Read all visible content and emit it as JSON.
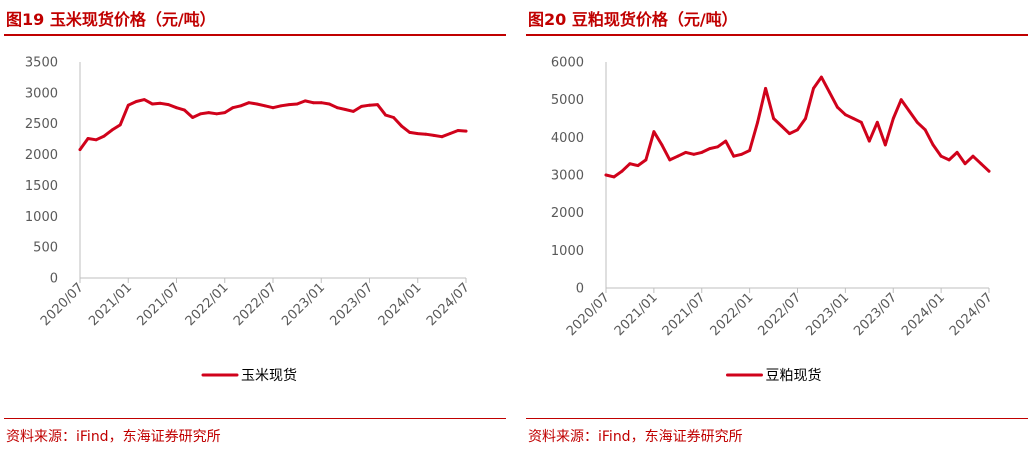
{
  "colors": {
    "accent": "#c00000",
    "series": "#d0021b",
    "axis": "#595959"
  },
  "left": {
    "title": "图19  玉米现货价格（元/吨）",
    "source": "资料来源：iFind，东海证券研究所"
  },
  "right": {
    "title": "图20  豆粕现货价格（元/吨）",
    "source": "资料来源：iFind，东海证券研究所"
  },
  "chart_data": [
    {
      "type": "line",
      "title": "图19  玉米现货价格（元/吨）",
      "xlabel": "",
      "ylabel": "",
      "ylim": [
        0,
        3500
      ],
      "yticks": [
        "0",
        "500",
        "1000",
        "1500",
        "2000",
        "2500",
        "3000",
        "3500"
      ],
      "xlim": [
        "2020-07",
        "2024-07"
      ],
      "xticks": [
        "2020/07",
        "2021/01",
        "2021/07",
        "2022/01",
        "2022/07",
        "2023/01",
        "2023/07",
        "2024/01",
        "2024/07"
      ],
      "grid": false,
      "legend": "bottom",
      "series": [
        {
          "name": "玉米现货",
          "color": "#d0021b",
          "points": [
            [
              "2020-07",
              2080
            ],
            [
              "2020-08",
              2260
            ],
            [
              "2020-09",
              2240
            ],
            [
              "2020-10",
              2300
            ],
            [
              "2020-11",
              2400
            ],
            [
              "2020-12",
              2480
            ],
            [
              "2021-01",
              2800
            ],
            [
              "2021-02",
              2860
            ],
            [
              "2021-03",
              2890
            ],
            [
              "2021-04",
              2820
            ],
            [
              "2021-05",
              2830
            ],
            [
              "2021-06",
              2810
            ],
            [
              "2021-07",
              2760
            ],
            [
              "2021-08",
              2720
            ],
            [
              "2021-09",
              2600
            ],
            [
              "2021-10",
              2660
            ],
            [
              "2021-11",
              2680
            ],
            [
              "2021-12",
              2660
            ],
            [
              "2022-01",
              2680
            ],
            [
              "2022-02",
              2760
            ],
            [
              "2022-03",
              2790
            ],
            [
              "2022-04",
              2840
            ],
            [
              "2022-05",
              2820
            ],
            [
              "2022-06",
              2790
            ],
            [
              "2022-07",
              2760
            ],
            [
              "2022-08",
              2790
            ],
            [
              "2022-09",
              2810
            ],
            [
              "2022-10",
              2820
            ],
            [
              "2022-11",
              2870
            ],
            [
              "2022-12",
              2840
            ],
            [
              "2023-01",
              2840
            ],
            [
              "2023-02",
              2820
            ],
            [
              "2023-03",
              2760
            ],
            [
              "2023-04",
              2730
            ],
            [
              "2023-05",
              2700
            ],
            [
              "2023-06",
              2780
            ],
            [
              "2023-07",
              2800
            ],
            [
              "2023-08",
              2810
            ],
            [
              "2023-09",
              2640
            ],
            [
              "2023-10",
              2600
            ],
            [
              "2023-11",
              2460
            ],
            [
              "2023-12",
              2360
            ],
            [
              "2024-01",
              2340
            ],
            [
              "2024-02",
              2330
            ],
            [
              "2024-03",
              2310
            ],
            [
              "2024-04",
              2290
            ],
            [
              "2024-05",
              2340
            ],
            [
              "2024-06",
              2390
            ],
            [
              "2024-07",
              2380
            ]
          ]
        }
      ]
    },
    {
      "type": "line",
      "title": "图20  豆粕现货价格（元/吨）",
      "xlabel": "",
      "ylabel": "",
      "ylim": [
        0,
        6000
      ],
      "yticks": [
        "0",
        "1000",
        "2000",
        "3000",
        "4000",
        "5000",
        "6000"
      ],
      "xlim": [
        "2020-07",
        "2024-07"
      ],
      "xticks": [
        "2020/07",
        "2021/01",
        "2021/07",
        "2022/01",
        "2022/07",
        "2023/01",
        "2023/07",
        "2024/01",
        "2024/07"
      ],
      "grid": false,
      "legend": "bottom",
      "series": [
        {
          "name": "豆粕现货",
          "color": "#d0021b",
          "points": [
            [
              "2020-07",
              3000
            ],
            [
              "2020-08",
              2950
            ],
            [
              "2020-09",
              3100
            ],
            [
              "2020-10",
              3300
            ],
            [
              "2020-11",
              3250
            ],
            [
              "2020-12",
              3400
            ],
            [
              "2021-01",
              4150
            ],
            [
              "2021-02",
              3800
            ],
            [
              "2021-03",
              3400
            ],
            [
              "2021-04",
              3500
            ],
            [
              "2021-05",
              3600
            ],
            [
              "2021-06",
              3550
            ],
            [
              "2021-07",
              3600
            ],
            [
              "2021-08",
              3700
            ],
            [
              "2021-09",
              3750
            ],
            [
              "2021-10",
              3900
            ],
            [
              "2021-11",
              3500
            ],
            [
              "2021-12",
              3550
            ],
            [
              "2022-01",
              3650
            ],
            [
              "2022-02",
              4400
            ],
            [
              "2022-03",
              5300
            ],
            [
              "2022-04",
              4500
            ],
            [
              "2022-05",
              4300
            ],
            [
              "2022-06",
              4100
            ],
            [
              "2022-07",
              4200
            ],
            [
              "2022-08",
              4500
            ],
            [
              "2022-09",
              5300
            ],
            [
              "2022-10",
              5600
            ],
            [
              "2022-11",
              5200
            ],
            [
              "2022-12",
              4800
            ],
            [
              "2023-01",
              4600
            ],
            [
              "2023-02",
              4500
            ],
            [
              "2023-03",
              4400
            ],
            [
              "2023-04",
              3900
            ],
            [
              "2023-05",
              4400
            ],
            [
              "2023-06",
              3800
            ],
            [
              "2023-07",
              4500
            ],
            [
              "2023-08",
              5000
            ],
            [
              "2023-09",
              4700
            ],
            [
              "2023-10",
              4400
            ],
            [
              "2023-11",
              4200
            ],
            [
              "2023-12",
              3800
            ],
            [
              "2024-01",
              3500
            ],
            [
              "2024-02",
              3400
            ],
            [
              "2024-03",
              3600
            ],
            [
              "2024-04",
              3300
            ],
            [
              "2024-05",
              3500
            ],
            [
              "2024-06",
              3300
            ],
            [
              "2024-07",
              3100
            ]
          ]
        }
      ]
    }
  ]
}
